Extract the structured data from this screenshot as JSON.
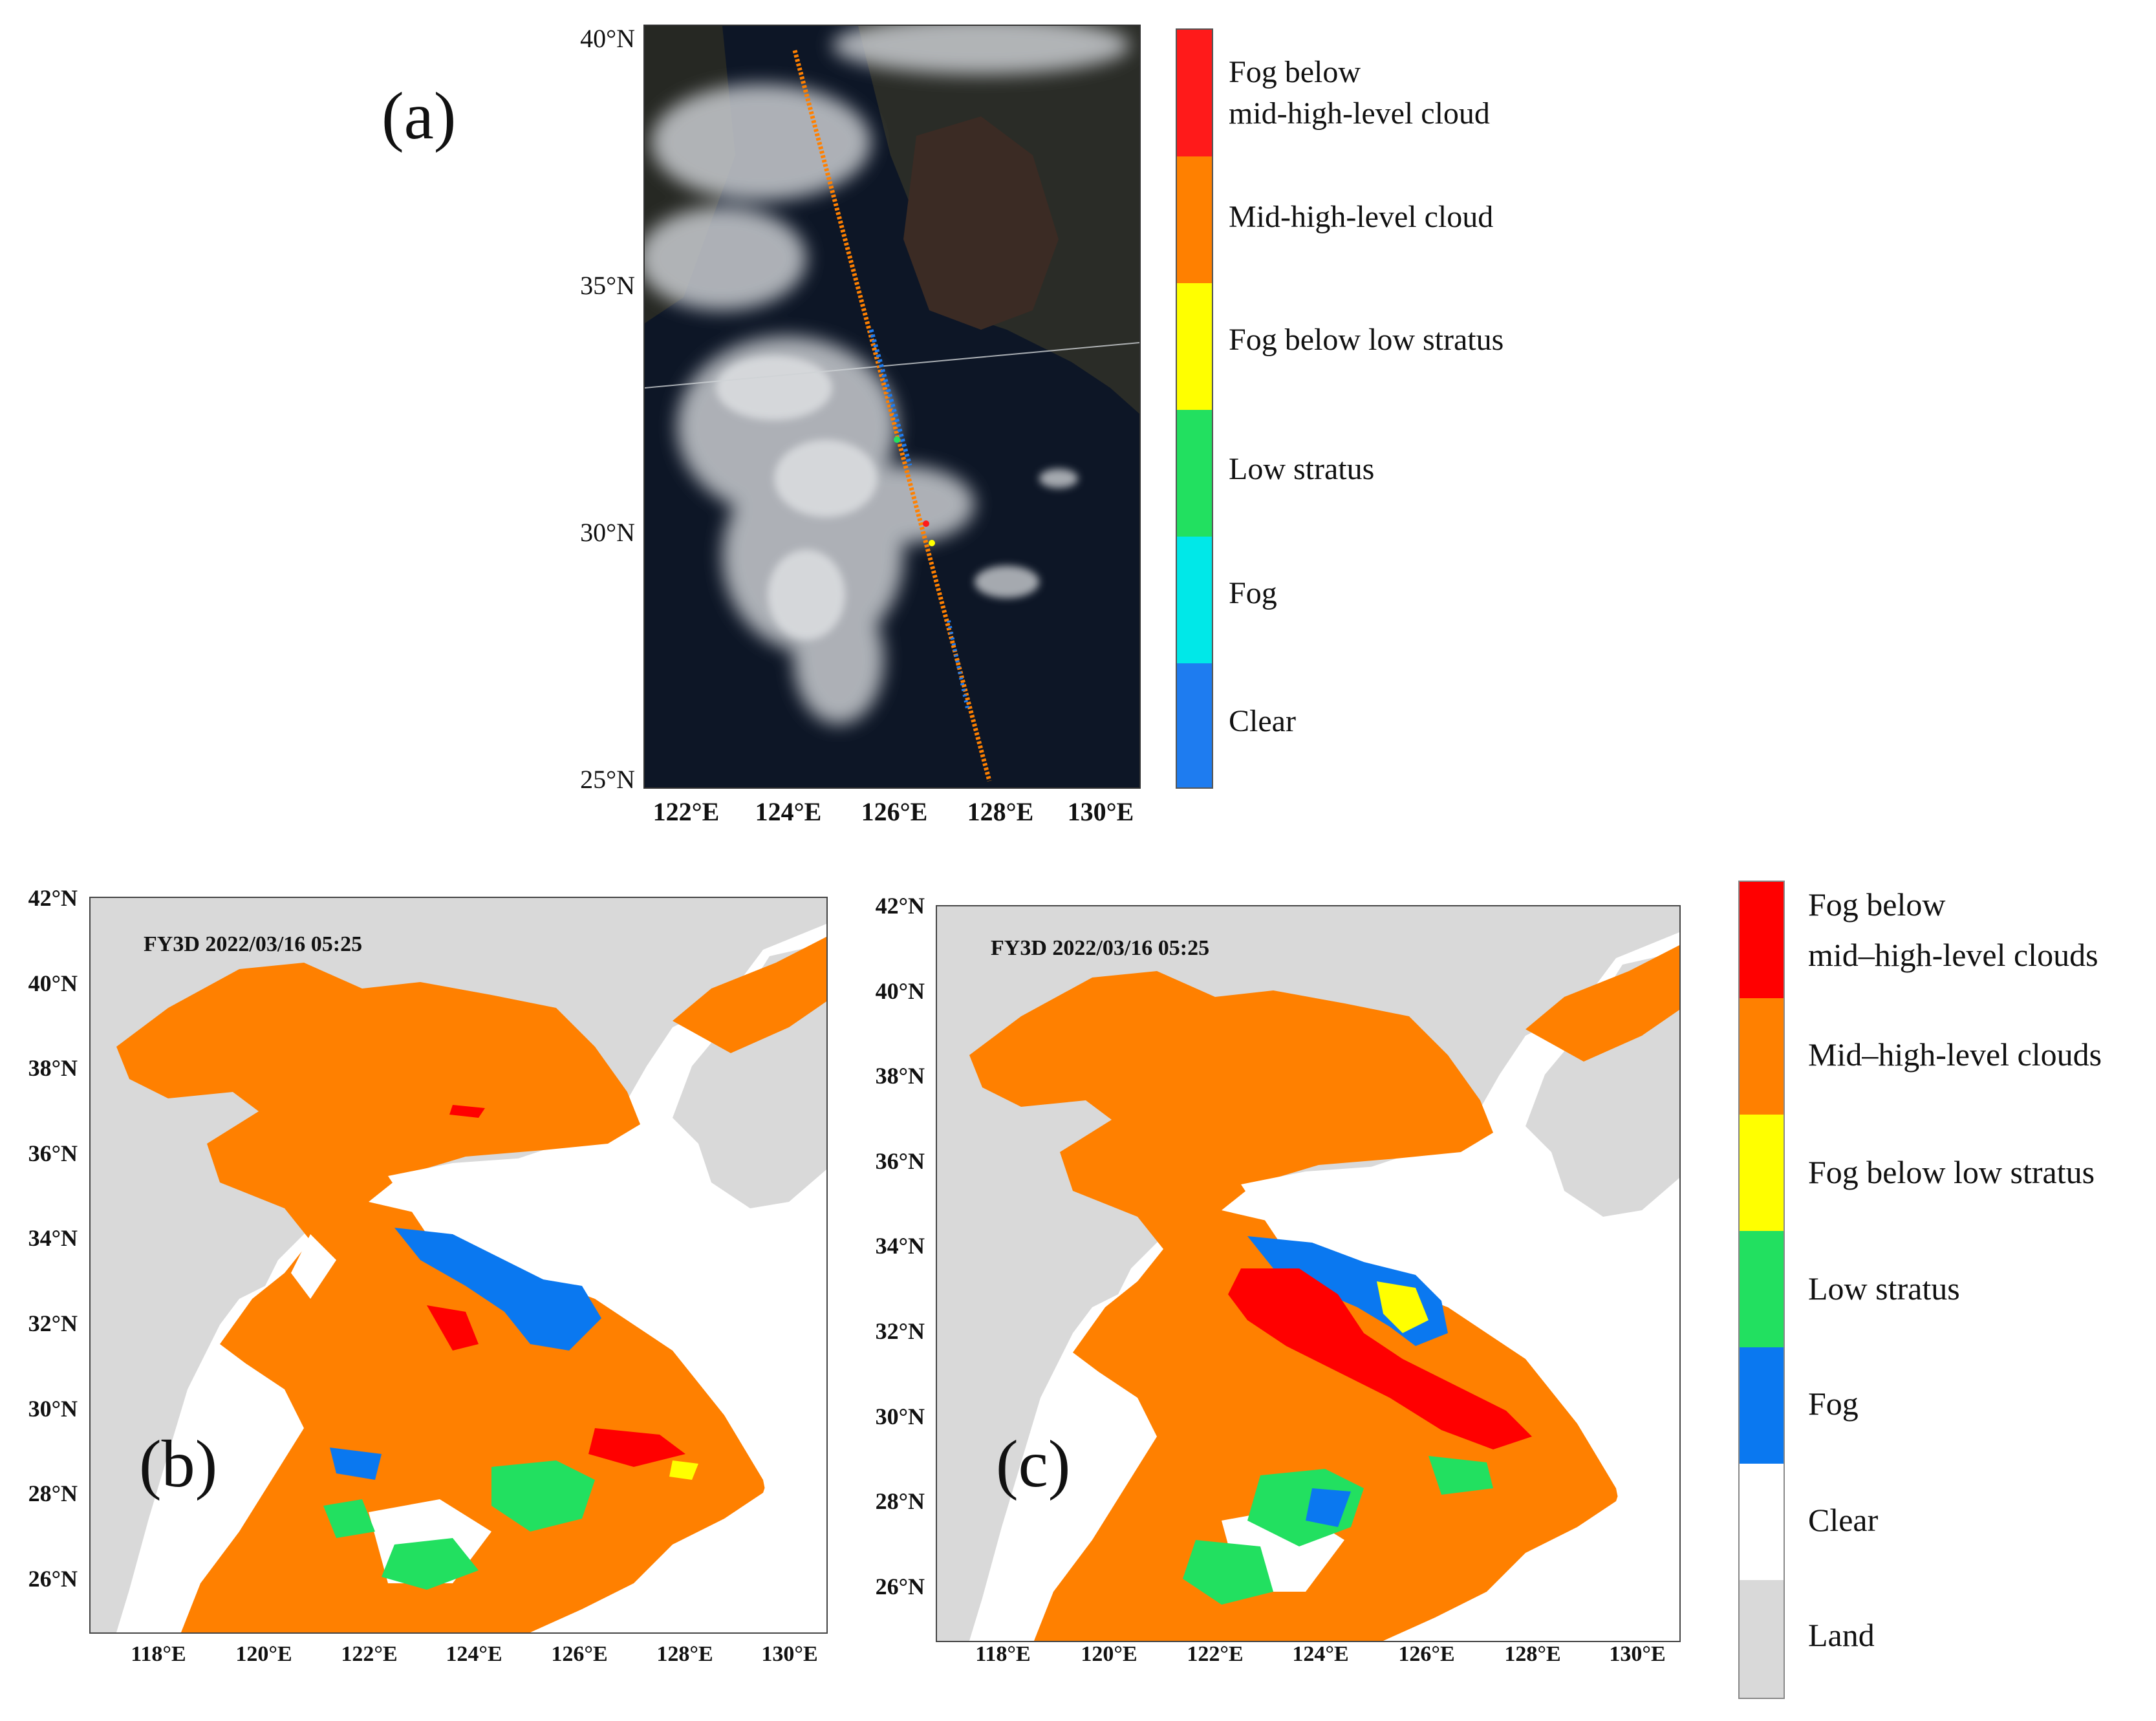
{
  "panel_a": {
    "label": "(a)",
    "lat_ticks": [
      "40°N",
      "35°N",
      "30°N",
      "25°N"
    ],
    "lon_ticks": [
      "122°E",
      "124°E",
      "126°E",
      "128°E",
      "130°E"
    ],
    "legend": {
      "classes": [
        {
          "name": "Fog below mid-high-level cloud",
          "line1": "Fog below",
          "line2": "mid-high-level cloud",
          "color": "#ff1a1a"
        },
        {
          "name": "Mid-high-level cloud",
          "color": "#ff8000"
        },
        {
          "name": "Fog below low stratus",
          "color": "#ffff00"
        },
        {
          "name": "Low stratus",
          "color": "#22e060"
        },
        {
          "name": "Fog",
          "color": "#00e8e8"
        },
        {
          "name": "Clear",
          "color": "#1e7cf0"
        }
      ]
    }
  },
  "panel_b": {
    "label": "(b)",
    "stamp": "FY3D  2022/03/16 05:25",
    "lat_ticks": [
      "42°N",
      "40°N",
      "38°N",
      "36°N",
      "34°N",
      "32°N",
      "30°N",
      "28°N",
      "26°N"
    ],
    "lon_ticks": [
      "118°E",
      "120°E",
      "122°E",
      "124°E",
      "126°E",
      "128°E",
      "130°E"
    ]
  },
  "panel_c": {
    "label": "(c)",
    "stamp": "FY3D  2022/03/16 05:25",
    "lat_ticks": [
      "42°N",
      "40°N",
      "38°N",
      "36°N",
      "34°N",
      "32°N",
      "30°N",
      "28°N",
      "26°N"
    ],
    "lon_ticks": [
      "118°E",
      "120°E",
      "122°E",
      "124°E",
      "126°E",
      "128°E",
      "130°E"
    ]
  },
  "legend_bc": {
    "classes": [
      {
        "name": "Fog below mid–high-level clouds",
        "line1": "Fog below",
        "line2": "mid–high-level clouds",
        "color": "#ff0000"
      },
      {
        "name": "Mid–high-level clouds",
        "color": "#ff8000"
      },
      {
        "name": "Fog below low stratus",
        "color": "#ffff00"
      },
      {
        "name": "Low stratus",
        "color": "#22e060"
      },
      {
        "name": "Fog",
        "color": "#0a78f0"
      },
      {
        "name": "Clear",
        "color": "#ffffff"
      },
      {
        "name": "Land",
        "color": "#d9d9d9"
      }
    ]
  }
}
